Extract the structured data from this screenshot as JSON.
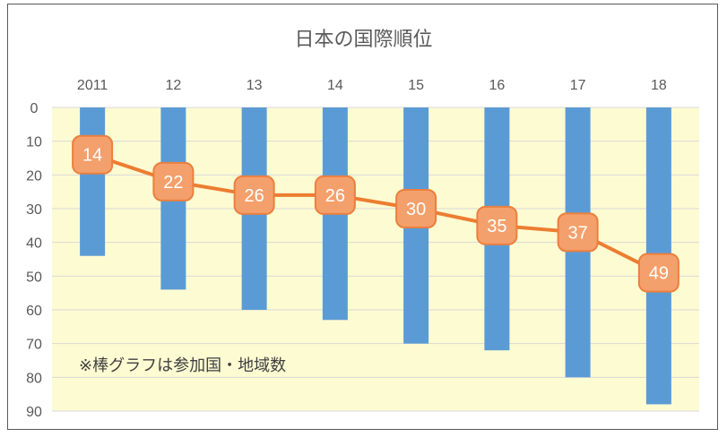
{
  "chart_data": {
    "type": "bar",
    "title": "日本の国際順位",
    "categories": [
      "2011",
      "12",
      "13",
      "14",
      "15",
      "16",
      "17",
      "18"
    ],
    "series": [
      {
        "kind": "bar",
        "values": [
          44,
          54,
          60,
          63,
          70,
          72,
          80,
          88
        ]
      },
      {
        "kind": "line",
        "values": [
          14,
          22,
          26,
          26,
          30,
          35,
          37,
          49
        ]
      }
    ],
    "y_ticks": [
      "0",
      "10",
      "20",
      "30",
      "40",
      "50",
      "60",
      "70",
      "80",
      "90"
    ],
    "ylim": [
      0,
      90
    ],
    "y_axis_reversed": true,
    "x_axis_position": "top",
    "grid": true,
    "legend": "none",
    "annotation": "※棒グラフは参加国・地域数",
    "colors": {
      "plot_background": "#fdfbd2",
      "gridline": "#d9d9d9",
      "bar": "#5b9bd5",
      "line": "#ed7d31",
      "marker_fill": "#f4a06c",
      "marker_border": "#eb7f3e"
    }
  }
}
